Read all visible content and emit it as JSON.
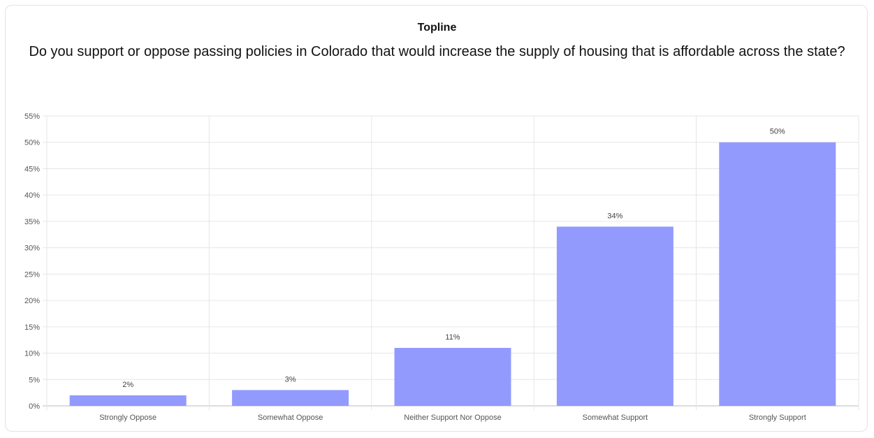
{
  "header": {
    "title": "Topline",
    "question": "Do you support or oppose passing policies in Colorado that would increase the supply of housing that is affordable across the state?"
  },
  "colors": {
    "bar": "#939afe",
    "grid": "#e6e6e6",
    "axis": "#bbbbbb"
  },
  "chart_data": {
    "type": "bar",
    "title": "Do you support or oppose passing policies in Colorado that would increase the supply of housing that is affordable across the state?",
    "categories": [
      "Strongly Oppose",
      "Somewhat Oppose",
      "Neither Support Nor Oppose",
      "Somewhat Support",
      "Strongly Support"
    ],
    "values": [
      2,
      3,
      11,
      34,
      50
    ],
    "data_labels": [
      "2%",
      "3%",
      "11%",
      "34%",
      "50%"
    ],
    "y_ticks": [
      "0%",
      "5%",
      "10%",
      "15%",
      "20%",
      "25%",
      "30%",
      "35%",
      "40%",
      "45%",
      "50%",
      "55%"
    ],
    "ylim": [
      0,
      55
    ],
    "xlabel": "",
    "ylabel": "",
    "grid": true,
    "legend": "none"
  }
}
